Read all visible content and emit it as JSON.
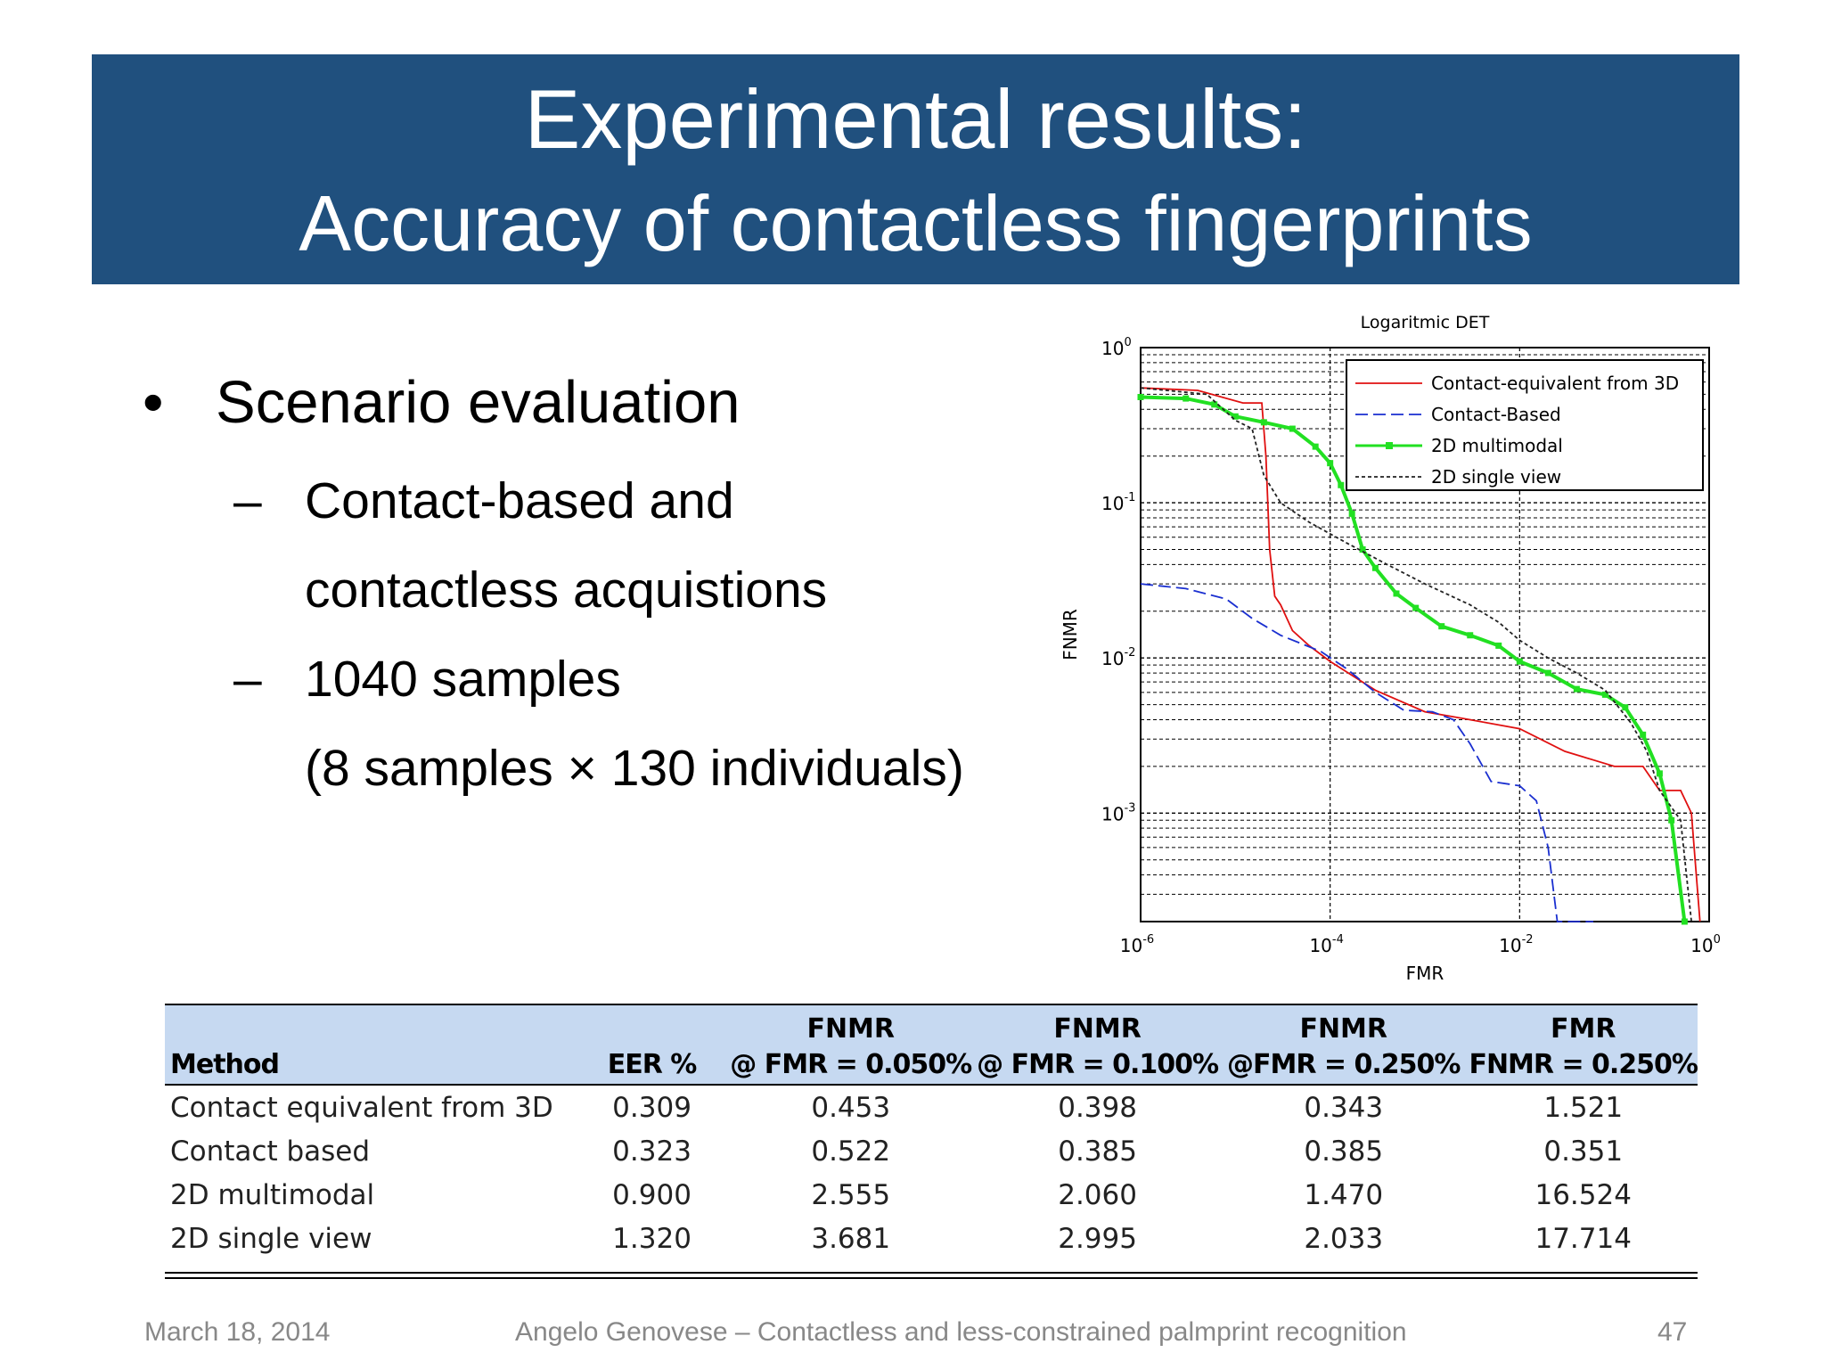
{
  "slide": {
    "title_line1": "Experimental results:",
    "title_line2": "Accuracy of contactless fingerprints",
    "title_bar_color": "#20507e"
  },
  "bullets": {
    "main": "Scenario evaluation",
    "bullet_symbol": "•",
    "dash_symbol": "–",
    "sub1_line1": "Contact-based and",
    "sub1_line2": "contactless acquistions",
    "sub2_line1": "1040 samples",
    "sub2_line2": "(8  samples × 130 individuals)"
  },
  "chart_data": {
    "type": "line",
    "title": "Logaritmic DET",
    "xlabel": "FMR",
    "ylabel": "FNMR",
    "xscale": "log",
    "yscale": "log",
    "xlim": [
      1e-06,
      1
    ],
    "ylim": [
      0.0002,
      1
    ],
    "grid": true,
    "legend_position": "top-right",
    "x_tick_labels": [
      {
        "base": "10",
        "exp": "-6"
      },
      {
        "base": "10",
        "exp": "-4"
      },
      {
        "base": "10",
        "exp": "-2"
      },
      {
        "base": "10",
        "exp": "0"
      }
    ],
    "y_tick_labels": [
      {
        "base": "10",
        "exp": "0"
      },
      {
        "base": "10",
        "exp": "-1"
      },
      {
        "base": "10",
        "exp": "-2"
      },
      {
        "base": "10",
        "exp": "-3"
      }
    ],
    "series": [
      {
        "name": "Contact-equivalent from 3D",
        "color": "#e01010",
        "style": "solid",
        "points": [
          [
            1e-06,
            0.55
          ],
          [
            4e-06,
            0.53
          ],
          [
            1.2e-05,
            0.44
          ],
          [
            1.9e-05,
            0.44
          ],
          [
            2.1e-05,
            0.2
          ],
          [
            2.3e-05,
            0.05
          ],
          [
            2.6e-05,
            0.025
          ],
          [
            3e-05,
            0.022
          ],
          [
            4e-05,
            0.015
          ],
          [
            6e-05,
            0.012
          ],
          [
            0.0001,
            0.0095
          ],
          [
            0.0003,
            0.0062
          ],
          [
            0.001,
            0.0045
          ],
          [
            0.003,
            0.004
          ],
          [
            0.01,
            0.0035
          ],
          [
            0.03,
            0.0025
          ],
          [
            0.06,
            0.0022
          ],
          [
            0.1,
            0.002
          ],
          [
            0.2,
            0.002
          ],
          [
            0.3,
            0.0014
          ],
          [
            0.5,
            0.0014
          ],
          [
            0.65,
            0.001
          ],
          [
            0.8,
            0.0002
          ]
        ]
      },
      {
        "name": "Contact-Based",
        "color": "#1a2fd0",
        "style": "dashed",
        "points": [
          [
            1e-06,
            0.03
          ],
          [
            3e-06,
            0.028
          ],
          [
            8e-06,
            0.024
          ],
          [
            1.5e-05,
            0.018
          ],
          [
            3e-05,
            0.014
          ],
          [
            8e-05,
            0.011
          ],
          [
            0.00015,
            0.0085
          ],
          [
            0.0003,
            0.006
          ],
          [
            0.0006,
            0.0046
          ],
          [
            0.0012,
            0.0045
          ],
          [
            0.002,
            0.004
          ],
          [
            0.003,
            0.0028
          ],
          [
            0.005,
            0.0016
          ],
          [
            0.01,
            0.0015
          ],
          [
            0.015,
            0.0012
          ],
          [
            0.02,
            0.0006
          ],
          [
            0.025,
            0.0002
          ],
          [
            0.06,
            0.0002
          ]
        ]
      },
      {
        "name": "2D multimodal",
        "color": "#22e022",
        "style": "solid-markers",
        "points": [
          [
            1e-06,
            0.48
          ],
          [
            3e-06,
            0.47
          ],
          [
            6e-06,
            0.43
          ],
          [
            1e-05,
            0.36
          ],
          [
            2e-05,
            0.33
          ],
          [
            4e-05,
            0.3
          ],
          [
            7e-05,
            0.23
          ],
          [
            0.0001,
            0.18
          ],
          [
            0.00013,
            0.13
          ],
          [
            0.00017,
            0.085
          ],
          [
            0.00022,
            0.05
          ],
          [
            0.0003,
            0.038
          ],
          [
            0.0005,
            0.026
          ],
          [
            0.0008,
            0.021
          ],
          [
            0.0015,
            0.016
          ],
          [
            0.003,
            0.014
          ],
          [
            0.006,
            0.012
          ],
          [
            0.01,
            0.0095
          ],
          [
            0.02,
            0.008
          ],
          [
            0.04,
            0.0063
          ],
          [
            0.08,
            0.0058
          ],
          [
            0.13,
            0.0048
          ],
          [
            0.2,
            0.0032
          ],
          [
            0.3,
            0.0018
          ],
          [
            0.4,
            0.0009
          ],
          [
            0.55,
            0.0002
          ]
        ]
      },
      {
        "name": "2D single view",
        "color": "#222222",
        "style": "dotted",
        "points": [
          [
            1e-06,
            0.55
          ],
          [
            5e-06,
            0.5
          ],
          [
            1e-05,
            0.34
          ],
          [
            1.5e-05,
            0.3
          ],
          [
            2e-05,
            0.15
          ],
          [
            3e-05,
            0.1
          ],
          [
            6e-05,
            0.075
          ],
          [
            0.00015,
            0.055
          ],
          [
            0.0004,
            0.04
          ],
          [
            0.001,
            0.03
          ],
          [
            0.003,
            0.022
          ],
          [
            0.006,
            0.017
          ],
          [
            0.01,
            0.013
          ],
          [
            0.02,
            0.01
          ],
          [
            0.04,
            0.008
          ],
          [
            0.08,
            0.0062
          ],
          [
            0.15,
            0.0038
          ],
          [
            0.22,
            0.0025
          ],
          [
            0.3,
            0.0014
          ],
          [
            0.5,
            0.0009
          ],
          [
            0.65,
            0.0002
          ]
        ]
      }
    ]
  },
  "table": {
    "headers_top": [
      "",
      "",
      "FNMR",
      "FNMR",
      "FNMR",
      "FMR"
    ],
    "headers_bottom": [
      "Method",
      "EER %",
      "@ FMR = 0.050%",
      "@ FMR = 0.100%",
      "@FMR = 0.250%",
      "FNMR = 0.250%"
    ],
    "header_bg": "#c6d9f1",
    "rows": [
      [
        "Contact equivalent from 3D",
        "0.309",
        "0.453",
        "0.398",
        "0.343",
        "1.521"
      ],
      [
        "Contact based",
        "0.323",
        "0.522",
        "0.385",
        "0.385",
        "0.351"
      ],
      [
        "2D multimodal",
        "0.900",
        "2.555",
        "2.060",
        "1.470",
        "16.524"
      ],
      [
        "2D single view",
        "1.320",
        "3.681",
        "2.995",
        "2.033",
        "17.714"
      ]
    ]
  },
  "footer": {
    "date": "March 18, 2014",
    "center": "Angelo Genovese – Contactless and less-constrained palmprint recognition",
    "page": "47"
  }
}
